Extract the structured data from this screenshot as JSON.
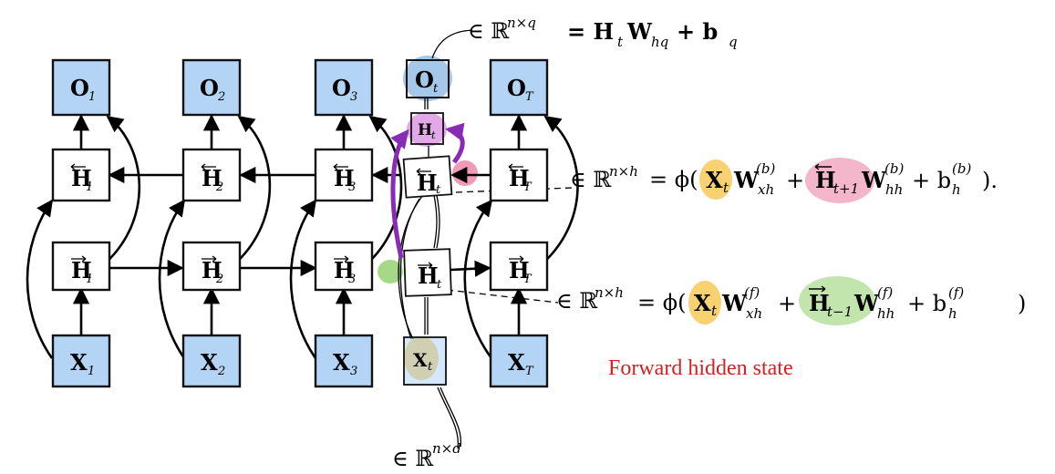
{
  "diagram": {
    "nodes": {
      "outputs": [
        {
          "base": "O",
          "sub": "1"
        },
        {
          "base": "O",
          "sub": "2"
        },
        {
          "base": "O",
          "sub": "3"
        },
        {
          "base": "O",
          "sub": "t"
        },
        {
          "base": "O",
          "sub": "T"
        }
      ],
      "backward": [
        {
          "base": "H",
          "sub": "1"
        },
        {
          "base": "H",
          "sub": "2"
        },
        {
          "base": "H",
          "sub": "3"
        },
        {
          "base": "H",
          "sub": "t"
        },
        {
          "base": "H",
          "sub": "T"
        }
      ],
      "forward": [
        {
          "base": "H",
          "sub": "1"
        },
        {
          "base": "H",
          "sub": "2"
        },
        {
          "base": "H",
          "sub": "3"
        },
        {
          "base": "H",
          "sub": "t"
        },
        {
          "base": "H",
          "sub": "T"
        }
      ],
      "inputs": [
        {
          "base": "X",
          "sub": "1"
        },
        {
          "base": "X",
          "sub": "2"
        },
        {
          "base": "X",
          "sub": "3"
        },
        {
          "base": "X",
          "sub": "t"
        },
        {
          "base": "X",
          "sub": "T"
        }
      ],
      "hidden_concat": {
        "base": "H",
        "sub": "t"
      }
    },
    "annotations": {
      "output_shape": "∈ ℝ",
      "output_shape_sup": "n×q",
      "output_eq": "= H",
      "output_eq_t": "t",
      "output_eq_w": "W",
      "output_eq_hq": "hq",
      "output_eq_plus": "+ b",
      "output_eq_q": "q",
      "backward_shape": "∈ ℝ",
      "backward_shape_sup": "n×h",
      "backward_eq": "= ϕ(",
      "forward_shape": "∈ ℝ",
      "forward_shape_sup": "n×h",
      "forward_eq": "= ϕ(",
      "input_shape": "∈ ℝ",
      "input_shape_sup": "n×d",
      "caption": "Forward hidden state"
    },
    "highlight_colors": {
      "orange": "#f5c242",
      "pink": "#ea7aa0",
      "green": "#8fd06a",
      "blue": "#5b9bd5",
      "purple": "#8a2bb5",
      "caption": "#d42020"
    }
  }
}
